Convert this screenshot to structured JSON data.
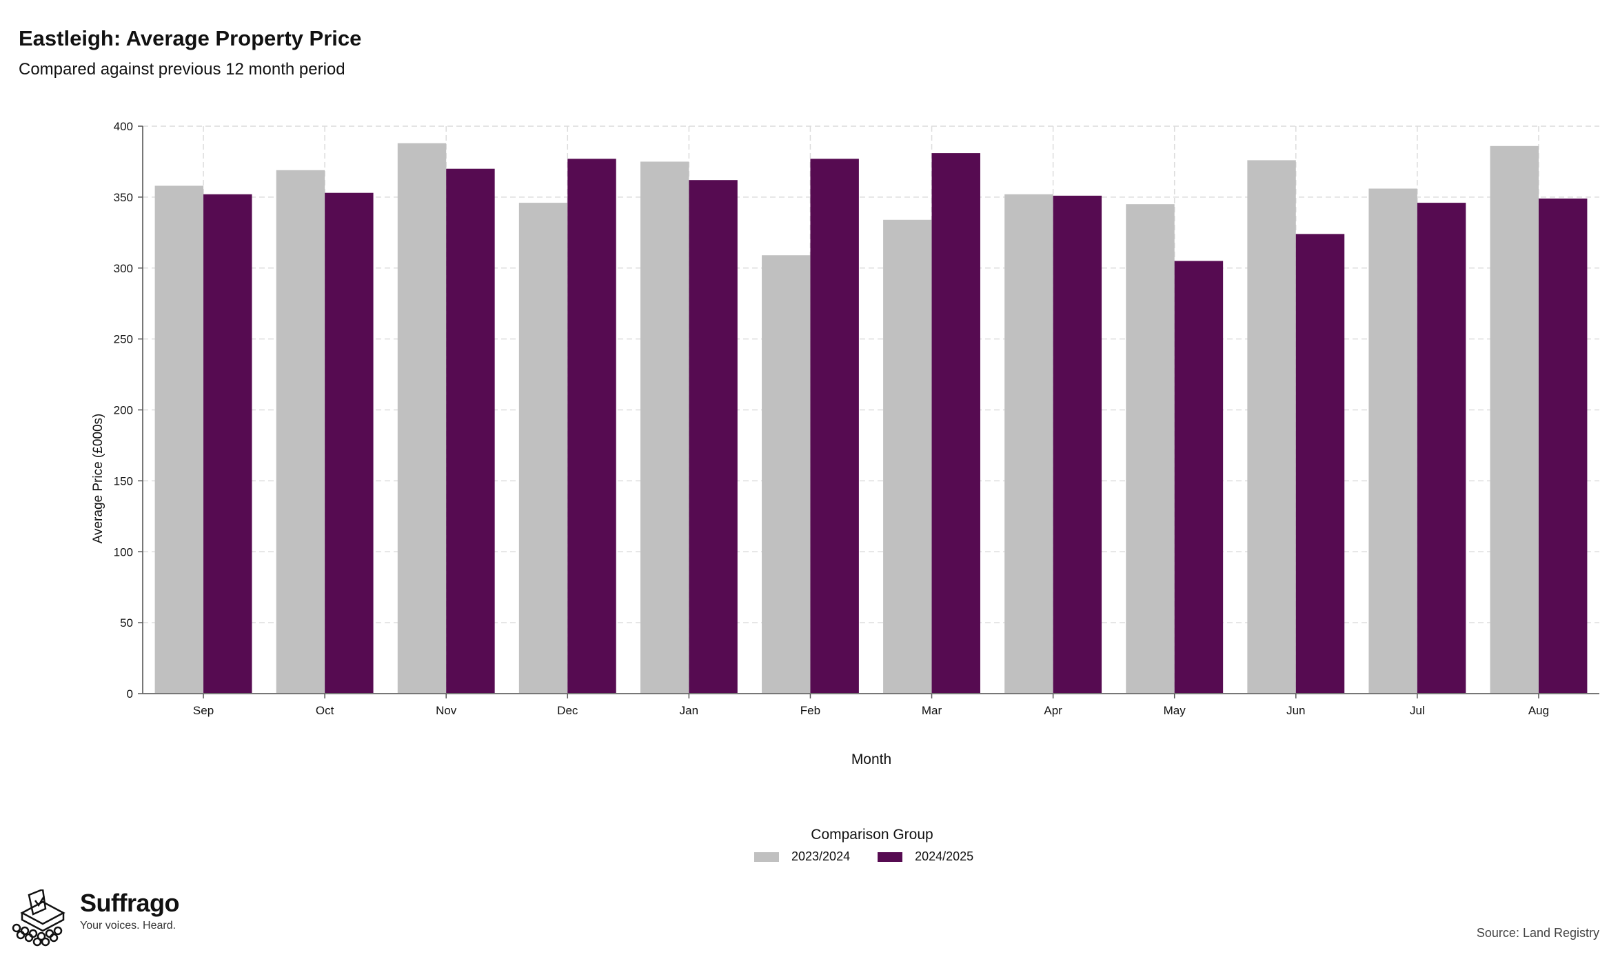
{
  "header": {
    "title": "Eastleigh: Average Property Price",
    "subtitle": "Compared against previous 12 month period"
  },
  "chart_data": {
    "type": "bar",
    "categories": [
      "Sep",
      "Oct",
      "Nov",
      "Dec",
      "Jan",
      "Feb",
      "Mar",
      "Apr",
      "May",
      "Jun",
      "Jul",
      "Aug"
    ],
    "series": [
      {
        "name": "2023/2024",
        "color": "#c0c0c0",
        "values": [
          358,
          369,
          388,
          346,
          375,
          309,
          334,
          352,
          345,
          376,
          356,
          386
        ]
      },
      {
        "name": "2024/2025",
        "color": "#560b51",
        "values": [
          352,
          353,
          370,
          377,
          362,
          377,
          381,
          351,
          305,
          324,
          346,
          349
        ]
      }
    ],
    "xlabel": "Month",
    "ylabel": "Average Price (£000s)",
    "ylim": [
      0,
      400
    ],
    "yticks": [
      0,
      50,
      100,
      150,
      200,
      250,
      300,
      350,
      400
    ],
    "grid": true,
    "legend_title": "Comparison Group",
    "legend_position": "bottom"
  },
  "footer": {
    "brand_name": "Suffrago",
    "brand_tagline": "Your voices. Heard.",
    "source": "Source: Land Registry"
  }
}
